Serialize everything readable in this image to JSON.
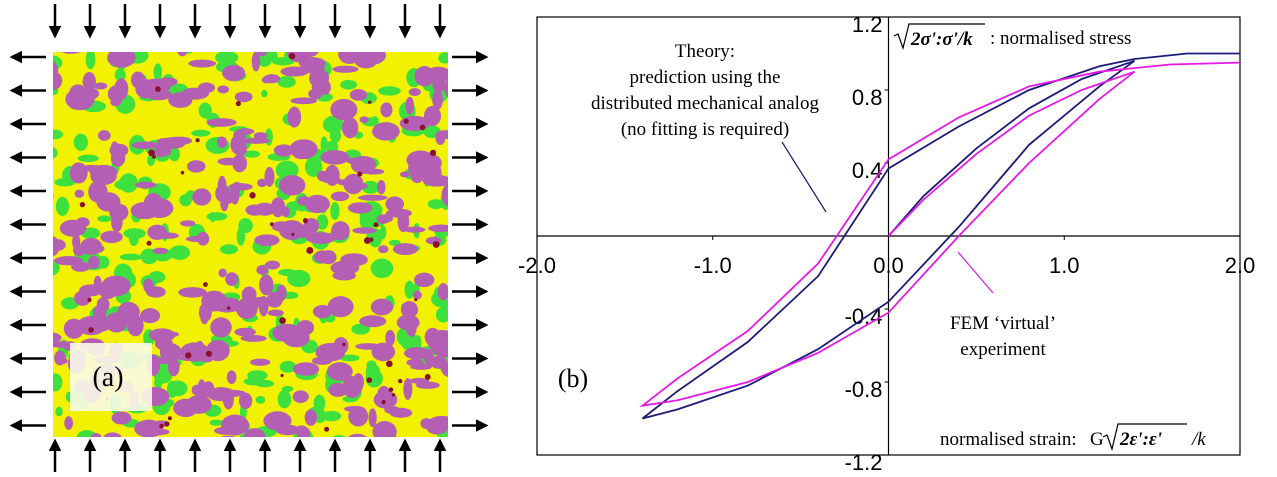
{
  "panel_a": {
    "label": "(a)"
  },
  "chart_data": {
    "type": "line",
    "panel_label": "(b)",
    "y_label_math": "2σ':σ'/k",
    "y_label": ": normalised stress",
    "x_label": "normalised strain:",
    "x_label_g": "G",
    "x_label_math": "2ε':ε'",
    "x_label_k": "/k",
    "annotation_theory": [
      "Theory:",
      "prediction using the",
      "distributed mechanical analog",
      "(no fitting is required)"
    ],
    "annotation_fem": [
      "FEM ‘virtual’",
      "experiment"
    ],
    "xlim": [
      -2,
      2
    ],
    "ylim": [
      -1.2,
      1.2
    ],
    "xticks": [
      {
        "value": -2,
        "label": "-2.0"
      },
      {
        "value": -1,
        "label": "-1.0"
      },
      {
        "value": 0,
        "label": "0.0"
      },
      {
        "value": 1,
        "label": "1.0"
      },
      {
        "value": 2,
        "label": "2.0"
      }
    ],
    "yticks": [
      1.2,
      0.8,
      0.4,
      -0.4,
      -0.8,
      -1.2
    ],
    "series": [
      {
        "color": "#1c1c78",
        "x": [
          0,
          0.2,
          0.5,
          0.8,
          1.1,
          1.4,
          1.2,
          0.8,
          0.4,
          0,
          -0.4,
          -0.8,
          -1.2,
          -1.4,
          -1.2,
          -0.8,
          -0.4,
          0,
          0.4,
          0.8,
          1.2,
          1.4,
          1.7,
          2.0
        ],
        "values": [
          0,
          0.22,
          0.48,
          0.7,
          0.86,
          0.96,
          0.82,
          0.5,
          0.05,
          -0.36,
          -0.62,
          -0.82,
          -0.95,
          -1.0,
          -0.85,
          -0.58,
          -0.22,
          0.37,
          0.6,
          0.8,
          0.93,
          0.97,
          1.0,
          1.0
        ]
      },
      {
        "color": "#e619e6",
        "x": [
          0,
          0.2,
          0.5,
          0.8,
          1.1,
          1.4,
          1.2,
          0.8,
          0.4,
          0,
          -0.4,
          -0.8,
          -1.2,
          -1.4,
          -1.2,
          -0.8,
          -0.4,
          0,
          0.4,
          0.8,
          1.2,
          1.6,
          2.0
        ],
        "values": [
          0,
          0.2,
          0.45,
          0.66,
          0.8,
          0.9,
          0.75,
          0.4,
          0,
          -0.42,
          -0.64,
          -0.8,
          -0.9,
          -0.93,
          -0.78,
          -0.52,
          -0.15,
          0.42,
          0.65,
          0.82,
          0.9,
          0.94,
          0.95
        ]
      }
    ]
  }
}
